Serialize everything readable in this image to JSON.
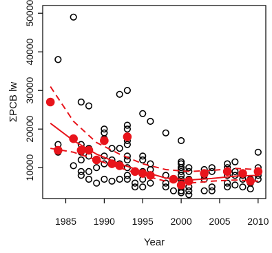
{
  "chart_data": {
    "type": "scatter",
    "title": "",
    "xlabel": "Year",
    "ylabel": "ΣPCB lw",
    "xlim": [
      1982,
      2011
    ],
    "ylim": [
      2000,
      52000
    ],
    "x_ticks": [
      1985,
      1990,
      1995,
      2000,
      2005,
      2010
    ],
    "x_tick_labels": [
      "1985",
      "1990",
      "1995",
      "2000",
      "2005",
      "2010"
    ],
    "y_ticks": [
      10000,
      20000,
      30000,
      40000,
      50000
    ],
    "y_tick_labels": [
      "10000",
      "20000",
      "30000",
      "40000",
      "50000"
    ],
    "grid": false,
    "legend": "none",
    "colors": {
      "observations": "#000000",
      "annual_means": "#e8141b",
      "trend": "#e8141b"
    },
    "series": [
      {
        "marker": "open-circle",
        "points": [
          [
            1984,
            38000
          ],
          [
            1984,
            16000
          ],
          [
            1984,
            14000
          ],
          [
            1986,
            49000
          ],
          [
            1986,
            10500
          ],
          [
            1987,
            27000
          ],
          [
            1987,
            16000
          ],
          [
            1987,
            14000
          ],
          [
            1987,
            12000
          ],
          [
            1987,
            9000
          ],
          [
            1987,
            8000
          ],
          [
            1988,
            26000
          ],
          [
            1988,
            15000
          ],
          [
            1988,
            13000
          ],
          [
            1988,
            9000
          ],
          [
            1988,
            7000
          ],
          [
            1989,
            10000
          ],
          [
            1989,
            6000
          ],
          [
            1990,
            20000
          ],
          [
            1990,
            19000
          ],
          [
            1990,
            17500
          ],
          [
            1990,
            13000
          ],
          [
            1990,
            11000
          ],
          [
            1990,
            7000
          ],
          [
            1991,
            15000
          ],
          [
            1991,
            12000
          ],
          [
            1991,
            6500
          ],
          [
            1992,
            29000
          ],
          [
            1992,
            15000
          ],
          [
            1992,
            11000
          ],
          [
            1992,
            7000
          ],
          [
            1993,
            30000
          ],
          [
            1993,
            21000
          ],
          [
            1993,
            20000
          ],
          [
            1993,
            17000
          ],
          [
            1993,
            16000
          ],
          [
            1993,
            13000
          ],
          [
            1993,
            12000
          ],
          [
            1993,
            10000
          ],
          [
            1993,
            8000
          ],
          [
            1993,
            7000
          ],
          [
            1994,
            9000
          ],
          [
            1994,
            6000
          ],
          [
            1994,
            5000
          ],
          [
            1995,
            24000
          ],
          [
            1995,
            13000
          ],
          [
            1995,
            12000
          ],
          [
            1995,
            9000
          ],
          [
            1995,
            7000
          ],
          [
            1995,
            5000
          ],
          [
            1996,
            22000
          ],
          [
            1996,
            11000
          ],
          [
            1996,
            9500
          ],
          [
            1996,
            6000
          ],
          [
            1998,
            19000
          ],
          [
            1998,
            8000
          ],
          [
            1998,
            6000
          ],
          [
            1998,
            5000
          ],
          [
            1999,
            7000
          ],
          [
            1999,
            4000
          ],
          [
            2000,
            17000
          ],
          [
            2000,
            11500
          ],
          [
            2000,
            11000
          ],
          [
            2000,
            10000
          ],
          [
            2000,
            9500
          ],
          [
            2000,
            9000
          ],
          [
            2000,
            8000
          ],
          [
            2000,
            7000
          ],
          [
            2000,
            6000
          ],
          [
            2000,
            5000
          ],
          [
            2000,
            4000
          ],
          [
            2000,
            3500
          ],
          [
            2001,
            10000
          ],
          [
            2001,
            9000
          ],
          [
            2001,
            7000
          ],
          [
            2001,
            5000
          ],
          [
            2001,
            4000
          ],
          [
            2001,
            3000
          ],
          [
            2003,
            9500
          ],
          [
            2003,
            8000
          ],
          [
            2003,
            7000
          ],
          [
            2003,
            4000
          ],
          [
            2004,
            10000
          ],
          [
            2004,
            9000
          ],
          [
            2004,
            5000
          ],
          [
            2004,
            4000
          ],
          [
            2006,
            11000
          ],
          [
            2006,
            10000
          ],
          [
            2006,
            8000
          ],
          [
            2006,
            6000
          ],
          [
            2006,
            5000
          ],
          [
            2007,
            11500
          ],
          [
            2007,
            9000
          ],
          [
            2007,
            8000
          ],
          [
            2007,
            5500
          ],
          [
            2008,
            8000
          ],
          [
            2008,
            7000
          ],
          [
            2008,
            5000
          ],
          [
            2009,
            7000
          ],
          [
            2009,
            6000
          ],
          [
            2009,
            4500
          ],
          [
            2010,
            14000
          ],
          [
            2010,
            10000
          ],
          [
            2010,
            9000
          ],
          [
            2010,
            8000
          ],
          [
            2010,
            7000
          ]
        ]
      },
      {
        "marker": "filled-circle",
        "points": [
          [
            1983,
            27000
          ],
          [
            1984,
            14500
          ],
          [
            1986,
            17500
          ],
          [
            1987,
            14500
          ],
          [
            1988,
            14500
          ],
          [
            1989,
            12000
          ],
          [
            1990,
            17000
          ],
          [
            1991,
            11000
          ],
          [
            1992,
            10500
          ],
          [
            1993,
            18000
          ],
          [
            1994,
            9000
          ],
          [
            1995,
            8500
          ],
          [
            1996,
            8000
          ],
          [
            1999,
            7000
          ],
          [
            2000,
            5500
          ],
          [
            2001,
            6500
          ],
          [
            2003,
            8500
          ],
          [
            2006,
            9000
          ],
          [
            2008,
            8500
          ],
          [
            2009,
            6500
          ],
          [
            2010,
            9000
          ]
        ]
      }
    ],
    "trend": {
      "x": [
        1983,
        1986,
        1989,
        1992,
        1995,
        1998,
        2001,
        2004,
        2007,
        2010
      ],
      "fit": [
        21500,
        17000,
        13500,
        11000,
        9000,
        7300,
        6800,
        7200,
        7800,
        8000
      ],
      "upper": [
        31000,
        22000,
        16500,
        13500,
        11000,
        9500,
        9000,
        9300,
        9800,
        9500
      ],
      "lower": [
        15000,
        14000,
        12000,
        10000,
        8000,
        6500,
        6000,
        6500,
        6800,
        6500
      ]
    }
  }
}
